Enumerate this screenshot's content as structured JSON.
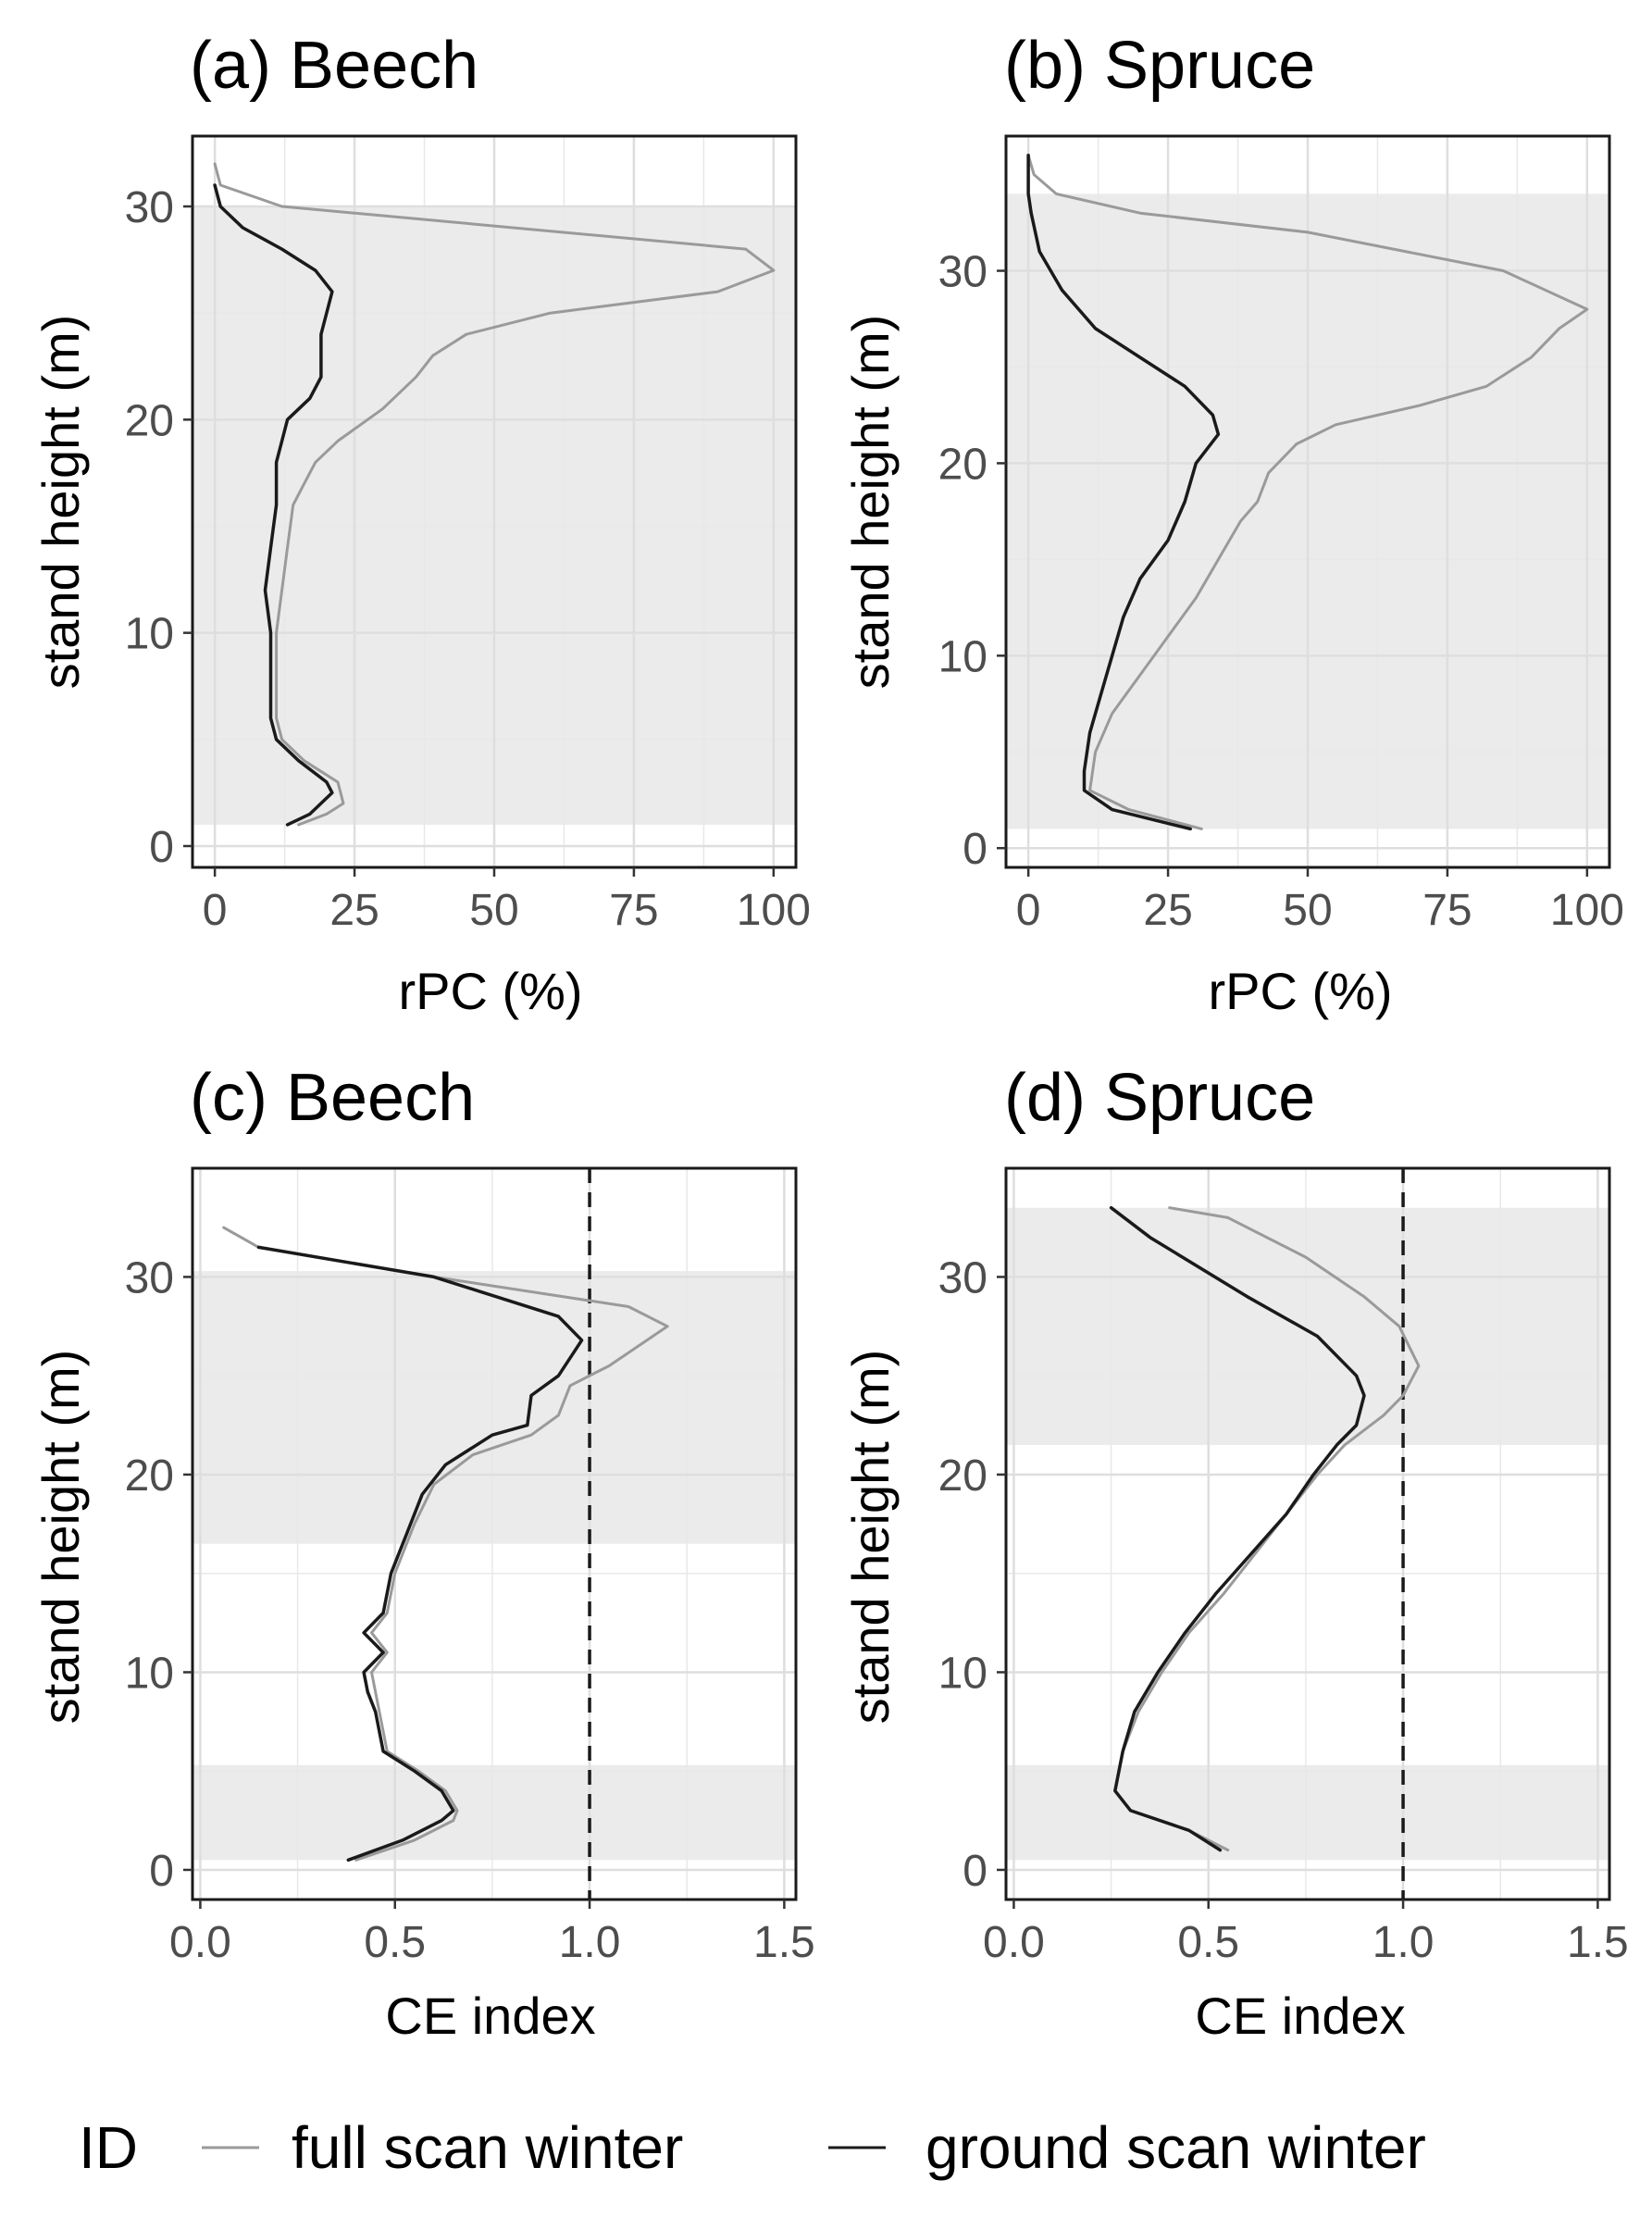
{
  "legend": {
    "title": "ID",
    "items": [
      {
        "label": "full scan winter",
        "color": "#9a9a9a"
      },
      {
        "label": "ground scan winter",
        "color": "#1a1a1a"
      }
    ]
  },
  "chart_data": [
    {
      "id": "a",
      "type": "line",
      "title": "(a) Beech",
      "xlabel": "rPC (%)",
      "ylabel": "stand height (m)",
      "xlim": [
        -4,
        104
      ],
      "ylim": [
        -1,
        33.3
      ],
      "xticks": [
        0,
        25,
        50,
        75,
        100
      ],
      "xtick_labels": [
        "0",
        "25",
        "50",
        "75",
        "100"
      ],
      "yticks": [
        0,
        10,
        20,
        30
      ],
      "ytick_labels": [
        "0",
        "10",
        "20",
        "30"
      ],
      "ref_line": null,
      "shaded_bands": [
        [
          1,
          30
        ]
      ],
      "series": [
        {
          "name": "full scan winter",
          "color": "#9a9a9a",
          "points": [
            [
              0,
              32
            ],
            [
              1,
              31
            ],
            [
              12,
              30
            ],
            [
              95,
              28
            ],
            [
              100,
              27
            ],
            [
              90,
              26
            ],
            [
              60,
              25
            ],
            [
              45,
              24
            ],
            [
              39,
              23
            ],
            [
              36,
              22
            ],
            [
              30,
              20.5
            ],
            [
              22,
              19
            ],
            [
              18,
              18
            ],
            [
              16,
              17
            ],
            [
              14,
              16
            ],
            [
              13,
              14
            ],
            [
              12,
              12
            ],
            [
              11,
              10
            ],
            [
              11,
              8
            ],
            [
              11,
              6
            ],
            [
              12,
              5
            ],
            [
              16,
              4
            ],
            [
              22,
              3
            ],
            [
              23,
              2
            ],
            [
              20,
              1.5
            ],
            [
              15,
              1
            ]
          ]
        },
        {
          "name": "ground scan winter",
          "color": "#1a1a1a",
          "points": [
            [
              0,
              31
            ],
            [
              1,
              30
            ],
            [
              5,
              29
            ],
            [
              12,
              28
            ],
            [
              18,
              27
            ],
            [
              21,
              26
            ],
            [
              20,
              25
            ],
            [
              19,
              24
            ],
            [
              19,
              22
            ],
            [
              17,
              21
            ],
            [
              13,
              20
            ],
            [
              12,
              19
            ],
            [
              11,
              18
            ],
            [
              11,
              16
            ],
            [
              10,
              14
            ],
            [
              9,
              12
            ],
            [
              10,
              10
            ],
            [
              10,
              8
            ],
            [
              10,
              6
            ],
            [
              11,
              5
            ],
            [
              15,
              4
            ],
            [
              20,
              3
            ],
            [
              21,
              2.5
            ],
            [
              17,
              1.5
            ],
            [
              13,
              1
            ]
          ]
        }
      ]
    },
    {
      "id": "b",
      "type": "line",
      "title": "(b) Spruce",
      "xlabel": "rPC (%)",
      "ylabel": "stand height (m)",
      "xlim": [
        -4,
        104
      ],
      "ylim": [
        -1,
        37
      ],
      "xticks": [
        0,
        25,
        50,
        75,
        100
      ],
      "xtick_labels": [
        "0",
        "25",
        "50",
        "75",
        "100"
      ],
      "yticks": [
        0,
        10,
        20,
        30
      ],
      "ytick_labels": [
        "0",
        "10",
        "20",
        "30"
      ],
      "ref_line": null,
      "shaded_bands": [
        [
          1,
          34
        ]
      ],
      "series": [
        {
          "name": "full scan winter",
          "color": "#9a9a9a",
          "points": [
            [
              0,
              36
            ],
            [
              1,
              35
            ],
            [
              5,
              34
            ],
            [
              20,
              33
            ],
            [
              50,
              32
            ],
            [
              85,
              30
            ],
            [
              100,
              28
            ],
            [
              95,
              27
            ],
            [
              90,
              25.5
            ],
            [
              82,
              24
            ],
            [
              70,
              23
            ],
            [
              55,
              22
            ],
            [
              48,
              21
            ],
            [
              43,
              19.5
            ],
            [
              41,
              18
            ],
            [
              38,
              17
            ],
            [
              34,
              15
            ],
            [
              30,
              13
            ],
            [
              25,
              11
            ],
            [
              20,
              9
            ],
            [
              15,
              7
            ],
            [
              12,
              5
            ],
            [
              11,
              3
            ],
            [
              18,
              2
            ],
            [
              31,
              1
            ]
          ]
        },
        {
          "name": "ground scan winter",
          "color": "#1a1a1a",
          "points": [
            [
              0,
              36
            ],
            [
              0,
              34
            ],
            [
              0.5,
              33
            ],
            [
              2,
              31
            ],
            [
              6,
              29
            ],
            [
              12,
              27
            ],
            [
              20,
              25.5
            ],
            [
              28,
              24
            ],
            [
              33,
              22.5
            ],
            [
              34,
              21.5
            ],
            [
              30,
              20
            ],
            [
              28,
              18
            ],
            [
              25,
              16
            ],
            [
              20,
              14
            ],
            [
              17,
              12
            ],
            [
              15,
              10
            ],
            [
              13,
              8
            ],
            [
              11,
              6
            ],
            [
              10,
              4
            ],
            [
              10,
              3
            ],
            [
              15,
              2
            ],
            [
              29,
              1
            ]
          ]
        }
      ]
    },
    {
      "id": "c",
      "type": "line",
      "title": "(c) Beech",
      "xlabel": "CE index",
      "ylabel": "stand height (m)",
      "xlim": [
        -0.02,
        1.53
      ],
      "ylim": [
        -1.5,
        35.5
      ],
      "xticks": [
        0,
        0.5,
        1.0,
        1.5
      ],
      "xtick_labels": [
        "0.0",
        "0.5",
        "1.0",
        "1.5"
      ],
      "yticks": [
        0,
        10,
        20,
        30
      ],
      "ytick_labels": [
        "0",
        "10",
        "20",
        "30"
      ],
      "ref_line": 1.0,
      "shaded_bands": [
        [
          16.5,
          30.3
        ],
        [
          0.5,
          5.3
        ]
      ],
      "series": [
        {
          "name": "full scan winter",
          "color": "#9a9a9a",
          "points": [
            [
              0.06,
              32.5
            ],
            [
              0.15,
              31.5
            ],
            [
              0.6,
              30
            ],
            [
              1.1,
              28.5
            ],
            [
              1.2,
              27.5
            ],
            [
              1.05,
              25.5
            ],
            [
              0.95,
              24.5
            ],
            [
              0.92,
              23
            ],
            [
              0.85,
              22
            ],
            [
              0.7,
              21
            ],
            [
              0.6,
              19.5
            ],
            [
              0.55,
              17.5
            ],
            [
              0.5,
              15
            ],
            [
              0.48,
              13
            ],
            [
              0.44,
              12
            ],
            [
              0.48,
              11
            ],
            [
              0.44,
              10
            ],
            [
              0.45,
              9
            ],
            [
              0.46,
              8
            ],
            [
              0.48,
              6
            ],
            [
              0.56,
              5
            ],
            [
              0.63,
              4
            ],
            [
              0.66,
              3
            ],
            [
              0.65,
              2.5
            ],
            [
              0.55,
              1.5
            ],
            [
              0.4,
              0.5
            ]
          ]
        },
        {
          "name": "ground scan winter",
          "color": "#1a1a1a",
          "points": [
            [
              0.15,
              31.5
            ],
            [
              0.6,
              30
            ],
            [
              0.92,
              28
            ],
            [
              0.98,
              26.8
            ],
            [
              0.92,
              25
            ],
            [
              0.85,
              24
            ],
            [
              0.84,
              22.5
            ],
            [
              0.75,
              22
            ],
            [
              0.63,
              20.5
            ],
            [
              0.57,
              19
            ],
            [
              0.53,
              17
            ],
            [
              0.49,
              15
            ],
            [
              0.47,
              13
            ],
            [
              0.42,
              12
            ],
            [
              0.47,
              11
            ],
            [
              0.42,
              10
            ],
            [
              0.43,
              9
            ],
            [
              0.45,
              8
            ],
            [
              0.47,
              6
            ],
            [
              0.55,
              5
            ],
            [
              0.62,
              4
            ],
            [
              0.65,
              3
            ],
            [
              0.62,
              2.5
            ],
            [
              0.52,
              1.5
            ],
            [
              0.38,
              0.5
            ]
          ]
        }
      ]
    },
    {
      "id": "d",
      "type": "line",
      "title": "(d) Spruce",
      "xlabel": "CE index",
      "ylabel": "stand height (m)",
      "xlim": [
        -0.02,
        1.53
      ],
      "ylim": [
        -1.5,
        35.5
      ],
      "xticks": [
        0,
        0.5,
        1.0,
        1.5
      ],
      "xtick_labels": [
        "0.0",
        "0.5",
        "1.0",
        "1.5"
      ],
      "yticks": [
        0,
        10,
        20,
        30
      ],
      "ytick_labels": [
        "0",
        "10",
        "20",
        "30"
      ],
      "ref_line": 1.0,
      "shaded_bands": [
        [
          21.5,
          33.5
        ],
        [
          0.5,
          5.3
        ]
      ],
      "series": [
        {
          "name": "full scan winter",
          "color": "#9a9a9a",
          "points": [
            [
              0.4,
              33.5
            ],
            [
              0.55,
              33
            ],
            [
              0.75,
              31
            ],
            [
              0.9,
              29
            ],
            [
              0.99,
              27.5
            ],
            [
              1.04,
              25.5
            ],
            [
              1.0,
              24
            ],
            [
              0.95,
              23
            ],
            [
              0.85,
              21.5
            ],
            [
              0.78,
              20
            ],
            [
              0.7,
              18
            ],
            [
              0.62,
              16
            ],
            [
              0.54,
              14
            ],
            [
              0.45,
              12
            ],
            [
              0.38,
              10
            ],
            [
              0.32,
              8
            ],
            [
              0.28,
              6
            ],
            [
              0.26,
              4
            ],
            [
              0.3,
              3
            ],
            [
              0.45,
              2
            ],
            [
              0.55,
              1
            ]
          ]
        },
        {
          "name": "ground scan winter",
          "color": "#1a1a1a",
          "points": [
            [
              0.25,
              33.5
            ],
            [
              0.35,
              32
            ],
            [
              0.6,
              29
            ],
            [
              0.78,
              27
            ],
            [
              0.88,
              25
            ],
            [
              0.9,
              24
            ],
            [
              0.88,
              22.5
            ],
            [
              0.83,
              21.5
            ],
            [
              0.77,
              20
            ],
            [
              0.7,
              18
            ],
            [
              0.61,
              16
            ],
            [
              0.52,
              14
            ],
            [
              0.44,
              12
            ],
            [
              0.37,
              10
            ],
            [
              0.31,
              8
            ],
            [
              0.28,
              6
            ],
            [
              0.26,
              4
            ],
            [
              0.3,
              3
            ],
            [
              0.45,
              2
            ],
            [
              0.53,
              1
            ]
          ]
        }
      ]
    }
  ]
}
